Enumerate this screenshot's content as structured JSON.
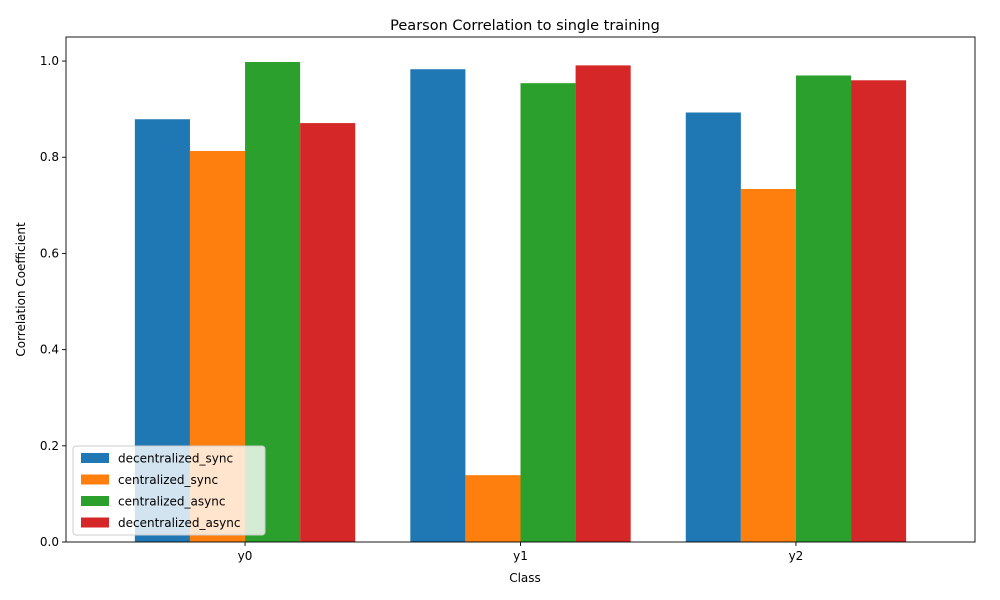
{
  "chart_data": {
    "type": "bar",
    "title": "Pearson Correlation to single training",
    "xlabel": "Class",
    "ylabel": "Correlation Coefficient",
    "categories": [
      "y0",
      "y1",
      "y2"
    ],
    "ylim": [
      0,
      1.05
    ],
    "yticks": [
      "0.0",
      "0.2",
      "0.4",
      "0.6",
      "0.8",
      "1.0"
    ],
    "grid": false,
    "legend_position": "lower-left",
    "series": [
      {
        "name": "decentralized_sync",
        "color": "#1f77b4",
        "values": [
          0.879,
          0.983,
          0.893
        ]
      },
      {
        "name": "centralized_sync",
        "color": "#ff7f0e",
        "values": [
          0.813,
          0.139,
          0.734
        ]
      },
      {
        "name": "centralized_async",
        "color": "#2ca02c",
        "values": [
          0.998,
          0.954,
          0.97
        ]
      },
      {
        "name": "decentralized_async",
        "color": "#d62728",
        "values": [
          0.871,
          0.991,
          0.96
        ]
      }
    ]
  }
}
